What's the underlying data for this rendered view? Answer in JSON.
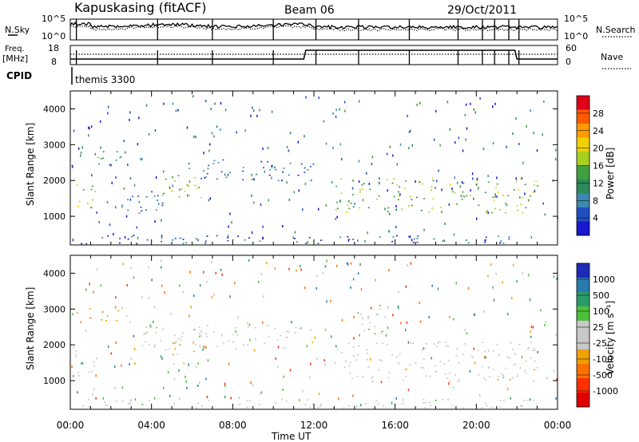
{
  "header": {
    "station": "Kapuskasing (fitACF)",
    "beam": "Beam 06",
    "date": "29/Oct/2011"
  },
  "noise_panel": {
    "left_label": "N.Sky",
    "right_label": "N.Search",
    "ticks_left": [
      "10^5",
      "10^0"
    ],
    "ticks_right": [
      "10^5",
      "10^0"
    ]
  },
  "freq_panel": {
    "left_label_line1": "Freq.",
    "left_label_line2": "[MHz]",
    "ticks_left": [
      "18",
      "8"
    ],
    "ticks_right": [
      "60",
      "0"
    ],
    "right_label": "Nave"
  },
  "cpid": {
    "label": "CPID",
    "value": "themis 3300"
  },
  "time_axis": {
    "ticks": [
      "00:00",
      "04:00",
      "08:00",
      "12:00",
      "16:00",
      "20:00",
      "00:00"
    ],
    "label": "Time UT"
  },
  "range_axis": {
    "ticks": [
      "1000",
      "2000",
      "3000",
      "4000"
    ],
    "label": "Slant Range [km]"
  },
  "power_colorbar": {
    "label": "Power [dB]",
    "ticks": [
      "28",
      "24",
      "20",
      "16",
      "12",
      "8",
      "4"
    ],
    "colors": [
      "#e0001a",
      "#ff5a00",
      "#ff9a00",
      "#f0d000",
      "#a8d020",
      "#40a040",
      "#2c8a5a",
      "#3c8ab0",
      "#2050c0",
      "#1818d0"
    ]
  },
  "velocity_colorbar": {
    "label": "Velocity [m s⁻¹]",
    "ticks": [
      "1000",
      "500",
      "100",
      "25",
      "-25",
      "-100",
      "-500",
      "-1000"
    ],
    "colors": [
      "#1c2bb8",
      "#2a7ab0",
      "#2a9a6a",
      "#4cc03a",
      "#c8c8c8",
      "#c8c8c8",
      "#f0a000",
      "#ff7000",
      "#ff3000",
      "#e00000"
    ]
  },
  "chart_data": [
    {
      "type": "heatmap",
      "title": "Power",
      "xlabel": "Time UT",
      "ylabel": "Slant Range [km]",
      "xlim": [
        0,
        24
      ],
      "ylim": [
        200,
        4500
      ],
      "colorbar_range": [
        0,
        30
      ],
      "regions": [
        {
          "t": [
            0.1,
            1.2
          ],
          "r": [
            1100,
            2000
          ],
          "value": 16
        },
        {
          "t": [
            1.0,
            2.5
          ],
          "r": [
            2400,
            3000
          ],
          "value": 12
        },
        {
          "t": [
            4.5,
            6.5
          ],
          "r": [
            1400,
            2100
          ],
          "value": 18
        },
        {
          "t": [
            2.5,
            5.0
          ],
          "r": [
            1100,
            1800
          ],
          "value": 6
        },
        {
          "t": [
            5.0,
            12.0
          ],
          "r": [
            2000,
            2600
          ],
          "value": 6
        },
        {
          "t": [
            13.0,
            23.0
          ],
          "r": [
            1100,
            2100
          ],
          "value": 15
        },
        {
          "t": [
            0.5,
            23.0
          ],
          "r": [
            250,
            500
          ],
          "value": 5
        }
      ]
    },
    {
      "type": "heatmap",
      "title": "Velocity",
      "xlabel": "Time UT",
      "ylabel": "Slant Range [km]",
      "xlim": [
        0,
        24
      ],
      "ylim": [
        200,
        4500
      ],
      "colorbar_range": [
        -1000,
        1000
      ],
      "regions": [
        {
          "t": [
            0.1,
            1.2
          ],
          "r": [
            1100,
            2000
          ],
          "value": 0
        },
        {
          "t": [
            0.2,
            1.0
          ],
          "r": [
            2600,
            3100
          ],
          "value": -300
        },
        {
          "t": [
            1.5,
            3.0
          ],
          "r": [
            2500,
            3000
          ],
          "value": -300
        },
        {
          "t": [
            4.6,
            6.3
          ],
          "r": [
            1400,
            2100
          ],
          "value": -200
        },
        {
          "t": [
            3.5,
            12.0
          ],
          "r": [
            1900,
            2600
          ],
          "value": 0
        },
        {
          "t": [
            13.0,
            23.0
          ],
          "r": [
            1000,
            2100
          ],
          "value": 0
        },
        {
          "t": [
            14.0,
            15.5
          ],
          "r": [
            2300,
            3200
          ],
          "value": 150
        },
        {
          "t": [
            0.5,
            23.0
          ],
          "r": [
            250,
            500
          ],
          "value": 0
        }
      ]
    }
  ]
}
